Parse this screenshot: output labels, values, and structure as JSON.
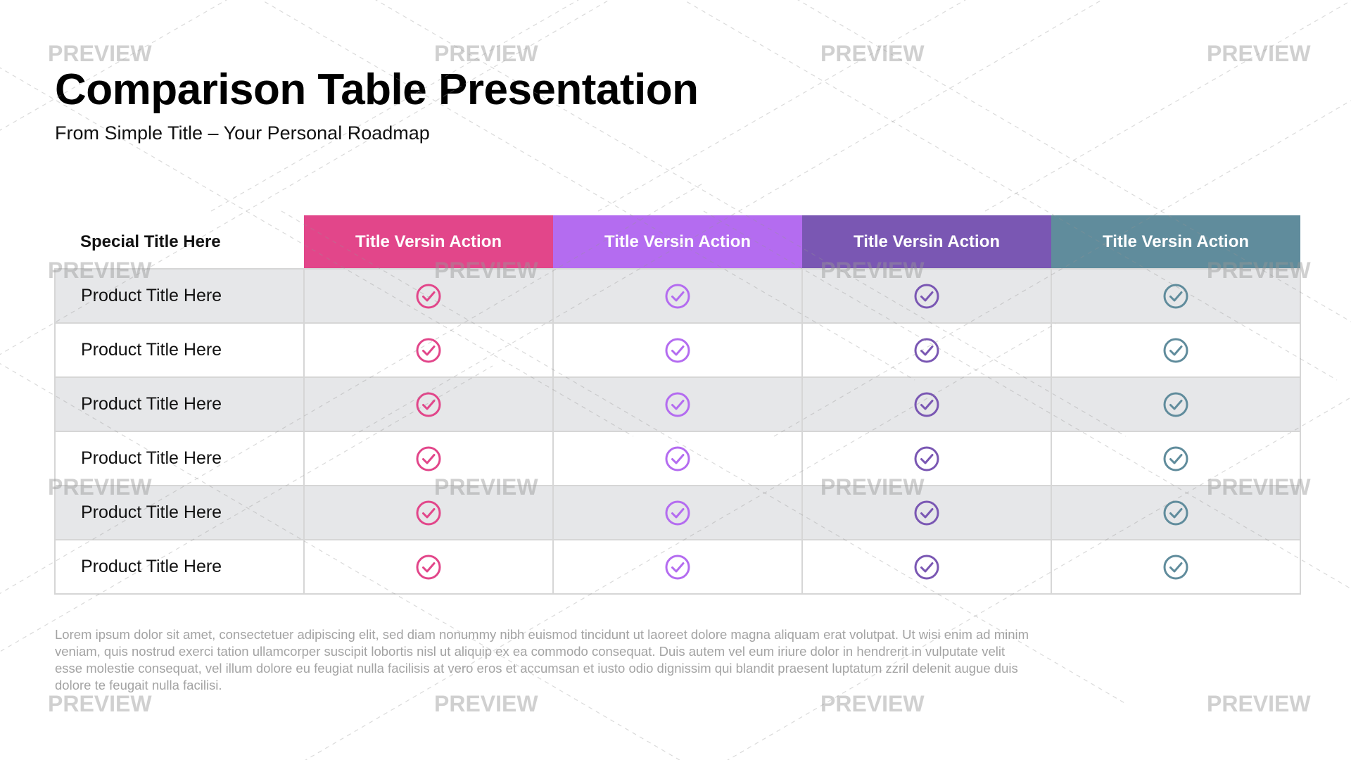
{
  "title": "Comparison Table Presentation",
  "subtitle": "From Simple Title – Your Personal Roadmap",
  "table": {
    "corner_label": "Special Title Here",
    "columns": [
      {
        "label": "Title Versin Action",
        "color": "#e2468a"
      },
      {
        "label": "Title Versin Action",
        "color": "#b46cf0"
      },
      {
        "label": "Title Versin Action",
        "color": "#7a57b3"
      },
      {
        "label": "Title Versin Action",
        "color": "#608c9c"
      }
    ],
    "row_icon": "check-circle-icon",
    "rows": [
      {
        "label": "Product Title Here",
        "checks": [
          true,
          true,
          true,
          true
        ]
      },
      {
        "label": "Product Title Here",
        "checks": [
          true,
          true,
          true,
          true
        ]
      },
      {
        "label": "Product Title Here",
        "checks": [
          true,
          true,
          true,
          true
        ]
      },
      {
        "label": "Product Title Here",
        "checks": [
          true,
          true,
          true,
          true
        ]
      },
      {
        "label": "Product Title Here",
        "checks": [
          true,
          true,
          true,
          true
        ]
      },
      {
        "label": "Product Title Here",
        "checks": [
          true,
          true,
          true,
          true
        ]
      }
    ]
  },
  "footer": "Lorem ipsum dolor sit amet, consectetuer adipiscing elit, sed diam nonummy nibh euismod tincidunt ut laoreet dolore magna aliquam erat volutpat. Ut wisi enim ad minim veniam, quis nostrud exerci tation ullamcorper suscipit lobortis nisl ut aliquip ex ea commodo consequat. Duis autem vel eum iriure dolor in hendrerit in vulputate velit esse molestie consequat, vel illum dolore eu feugiat nulla facilisis at vero eros et accumsan et iusto odio dignissim qui blandit praesent luptatum zzril delenit augue duis dolore te feugait nulla facilisi.",
  "watermark": {
    "text": "PREVIEW",
    "color": "#969696"
  }
}
